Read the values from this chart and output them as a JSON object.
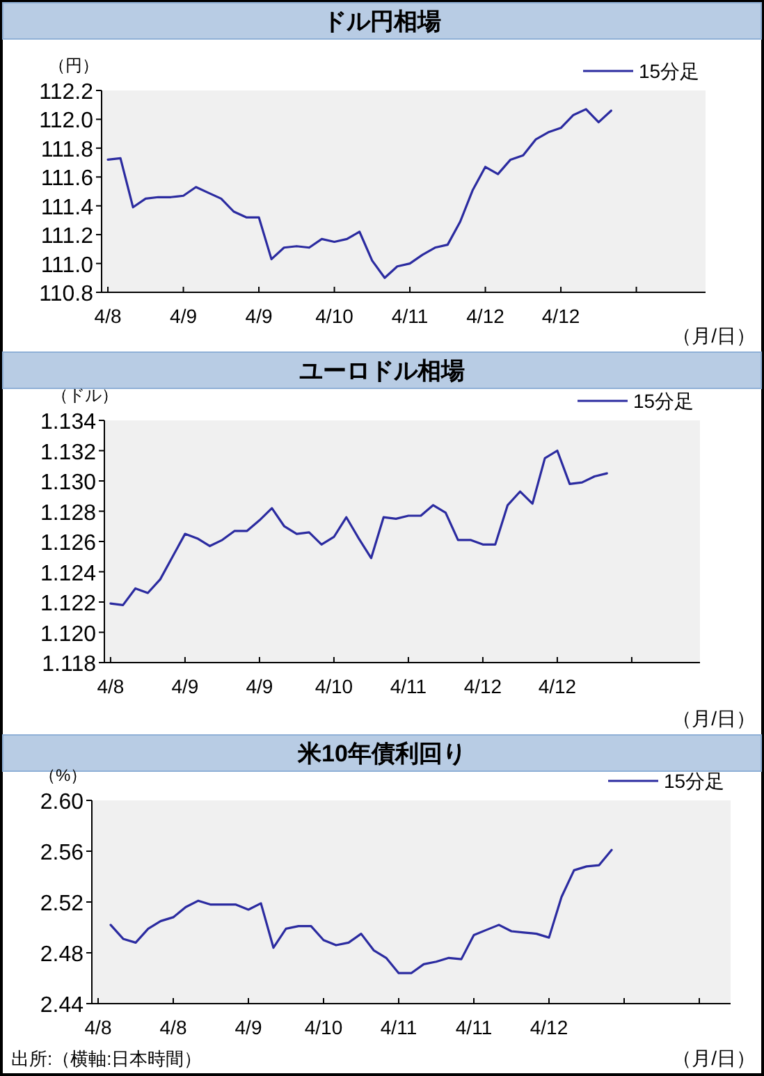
{
  "chart_data": [
    {
      "type": "line",
      "title": "ドル円相場",
      "ylabel": "（円）",
      "xlabel": "（月/日）",
      "legend": "top right",
      "grid": false,
      "categories": [
        "4/8",
        null,
        null,
        null,
        null,
        null,
        "4/9",
        null,
        null,
        null,
        null,
        null,
        "4/9",
        null,
        null,
        null,
        null,
        null,
        "4/10",
        null,
        null,
        null,
        null,
        null,
        "4/11",
        null,
        null,
        null,
        null,
        null,
        "4/12",
        null,
        null,
        null,
        null,
        null,
        "4/12",
        null,
        null,
        null,
        null,
        null,
        null,
        null,
        null,
        null,
        null,
        null
      ],
      "ylim": [
        110.8,
        112.2
      ],
      "yticks": [
        {
          "value": 110.8,
          "label": "110.8"
        },
        {
          "value": 111,
          "label": "111.0"
        },
        {
          "value": 111.2,
          "label": "111.2"
        },
        {
          "value": 111.4,
          "label": "111.4"
        },
        {
          "value": 111.6,
          "label": "111.6"
        },
        {
          "value": 111.8,
          "label": "111.8"
        },
        {
          "value": 112,
          "label": "112.0"
        },
        {
          "value": 112.2,
          "label": "112.2"
        }
      ],
      "series": [
        {
          "name": "15分足",
          "color": "#2b2ba0",
          "values": [
            111.72,
            111.73,
            111.39,
            111.45,
            111.46,
            111.46,
            111.47,
            111.53,
            111.49,
            111.45,
            111.36,
            111.32,
            111.32,
            111.03,
            111.11,
            111.12,
            111.11,
            111.17,
            111.15,
            111.17,
            111.22,
            111.02,
            110.9,
            110.98,
            111.0,
            111.06,
            111.11,
            111.13,
            111.29,
            111.51,
            111.67,
            111.62,
            111.72,
            111.75,
            111.86,
            111.91,
            111.94,
            112.03,
            112.07,
            111.98,
            112.06,
            null,
            null,
            null,
            null,
            null,
            null,
            null
          ]
        }
      ]
    },
    {
      "type": "line",
      "title": "ユーロドル相場",
      "ylabel": "（ドル）",
      "xlabel": "（月/日）",
      "legend": "top right",
      "grid": false,
      "categories": [
        "4/8",
        null,
        null,
        null,
        null,
        null,
        "4/9",
        null,
        null,
        null,
        null,
        null,
        "4/9",
        null,
        null,
        null,
        null,
        null,
        "4/10",
        null,
        null,
        null,
        null,
        null,
        "4/11",
        null,
        null,
        null,
        null,
        null,
        "4/12",
        null,
        null,
        null,
        null,
        null,
        "4/12",
        null,
        null,
        null,
        null,
        null,
        null,
        null,
        null,
        null,
        null,
        null
      ],
      "ylim": [
        1.118,
        1.134
      ],
      "yticks": [
        {
          "value": 1.118,
          "label": "1.118"
        },
        {
          "value": 1.12,
          "label": "1.120"
        },
        {
          "value": 1.122,
          "label": "1.122"
        },
        {
          "value": 1.124,
          "label": "1.124"
        },
        {
          "value": 1.126,
          "label": "1.126"
        },
        {
          "value": 1.128,
          "label": "1.128"
        },
        {
          "value": 1.13,
          "label": "1.130"
        },
        {
          "value": 1.132,
          "label": "1.132"
        },
        {
          "value": 1.134,
          "label": "1.134"
        }
      ],
      "series": [
        {
          "name": "15分足",
          "color": "#2b2ba0",
          "values": [
            1.1219,
            1.1218,
            1.1229,
            1.1226,
            1.1235,
            1.125,
            1.1265,
            1.1262,
            1.1257,
            1.1261,
            1.1267,
            1.1267,
            1.1274,
            1.1282,
            1.127,
            1.1265,
            1.1266,
            1.1258,
            1.1263,
            1.1276,
            1.1262,
            1.1249,
            1.1276,
            1.1275,
            1.1277,
            1.1277,
            1.1284,
            1.1279,
            1.1261,
            1.1261,
            1.1258,
            1.1258,
            1.1284,
            1.1293,
            1.1285,
            1.1315,
            1.132,
            1.1298,
            1.1299,
            1.1303,
            1.1305,
            null,
            null,
            null,
            null,
            null,
            null,
            null
          ]
        }
      ]
    },
    {
      "type": "line",
      "title": "米10年債利回り",
      "ylabel": "（%）",
      "xlabel": "（月/日）",
      "legend": "top right",
      "grid": false,
      "annotations": [
        "出所:（横軸:日本時間）"
      ],
      "categories": [
        "4/8",
        null,
        null,
        null,
        null,
        null,
        "4/8",
        null,
        null,
        null,
        null,
        null,
        "4/9",
        null,
        null,
        null,
        null,
        null,
        "4/10",
        null,
        null,
        null,
        null,
        null,
        "4/11",
        null,
        null,
        null,
        null,
        null,
        "4/11",
        null,
        null,
        null,
        null,
        null,
        "4/12",
        null,
        null,
        null,
        null,
        null,
        null,
        null,
        null,
        null,
        null,
        null,
        null,
        null,
        null
      ],
      "ylim": [
        2.44,
        2.6
      ],
      "yticks": [
        {
          "value": 2.44,
          "label": "2.44"
        },
        {
          "value": 2.48,
          "label": "2.48"
        },
        {
          "value": 2.52,
          "label": "2.52"
        },
        {
          "value": 2.56,
          "label": "2.56"
        },
        {
          "value": 2.6,
          "label": "2.60"
        }
      ],
      "series": [
        {
          "name": "15分足",
          "color": "#2b2ba0",
          "values": [
            null,
            2.502,
            2.491,
            2.488,
            2.499,
            2.505,
            2.508,
            2.516,
            2.521,
            2.518,
            2.518,
            2.518,
            2.514,
            2.519,
            2.484,
            2.499,
            2.501,
            2.501,
            2.49,
            2.486,
            2.488,
            2.495,
            2.482,
            2.476,
            2.464,
            2.464,
            2.471,
            2.473,
            2.476,
            2.475,
            2.494,
            2.498,
            2.502,
            2.497,
            2.496,
            2.495,
            2.492,
            2.524,
            2.545,
            2.548,
            2.549,
            2.561,
            null,
            null,
            null,
            null,
            null,
            null,
            null,
            null,
            null
          ]
        }
      ]
    }
  ]
}
